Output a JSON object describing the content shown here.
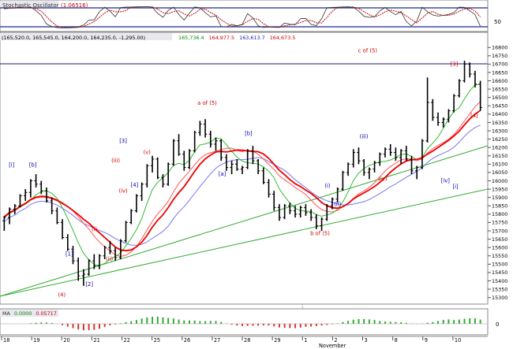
{
  "panels": {
    "stochastic": {
      "title": "Stochastic Oscillator",
      "value": "(1.06516)",
      "scale_label": "50"
    },
    "price": {
      "header_ohlc": "(165,520.0, 165,545.0, 164,200.0, 164,235.0, -1,295.00)",
      "ma1": "165,736.4",
      "ma2": "164,977.5",
      "ma3": "163,613.7",
      "ma4": "164,673.5"
    },
    "macd": {
      "title": "MA",
      "v1": "0.0000",
      "v2": "0.05717",
      "zero_label": "0"
    }
  },
  "month_label": "November",
  "chart_data": {
    "type": "candlestick",
    "y_ticks": [
      15300,
      15350,
      15400,
      15450,
      15500,
      15550,
      15600,
      15650,
      15700,
      15750,
      15800,
      15850,
      15900,
      15950,
      16000,
      16050,
      16100,
      16150,
      16200,
      16250,
      16300,
      16350,
      16400,
      16450,
      16500,
      16550,
      16600,
      16650,
      16700,
      16750,
      16800
    ],
    "ylim": [
      15270,
      16820
    ],
    "x_ticks": [
      "18",
      "19",
      "20",
      "21",
      "22",
      "25",
      "26",
      "27",
      "28",
      "29",
      "1",
      "2",
      "3",
      "8",
      "9",
      "10"
    ],
    "wave_labels": [
      {
        "text": "a of (5)",
        "day": 8.2,
        "price": 16455,
        "color": "#d00000"
      },
      {
        "text": "c of (5)",
        "day": 14.6,
        "price": 16770,
        "color": "#d00000"
      },
      {
        "text": "b of (5)",
        "day": 12.7,
        "price": 15675,
        "color": "#d00000"
      },
      {
        "text": "[i]",
        "day": 0.4,
        "price": 16085,
        "color": "#0000aa"
      },
      {
        "text": "[b]",
        "day": 1.25,
        "price": 16085,
        "color": "#0000aa"
      },
      {
        "text": "[1]",
        "day": 2.7,
        "price": 15550,
        "color": "#0000aa"
      },
      {
        "text": "[2]",
        "day": 3.5,
        "price": 15370,
        "color": "#0000aa"
      },
      {
        "text": "(4)",
        "day": 2.4,
        "price": 15305,
        "color": "#d00000"
      },
      {
        "text": "(i)",
        "day": 3.7,
        "price": 15700,
        "color": "#d00000"
      },
      {
        "text": "(ii)",
        "day": 4.3,
        "price": 15520,
        "color": "#d00000"
      },
      {
        "text": "(iii)",
        "day": 4.55,
        "price": 16110,
        "color": "#d00000"
      },
      {
        "text": "(iv)",
        "day": 4.85,
        "price": 15930,
        "color": "#d00000"
      },
      {
        "text": "[3]",
        "day": 4.85,
        "price": 16230,
        "color": "#0000aa"
      },
      {
        "text": "[4]",
        "day": 5.3,
        "price": 15965,
        "color": "#0000aa"
      },
      {
        "text": "(v)",
        "day": 5.8,
        "price": 16160,
        "color": "#d00000"
      },
      {
        "text": "[a]",
        "day": 8.8,
        "price": 16030,
        "color": "#0000aa"
      },
      {
        "text": "[b]",
        "day": 9.85,
        "price": 16275,
        "color": "#0000aa"
      },
      {
        "text": "(i)",
        "day": 13.0,
        "price": 15960,
        "color": "#0000aa"
      },
      {
        "text": "(ii)",
        "day": 13.4,
        "price": 15850,
        "color": "#0000aa"
      },
      {
        "text": "(iii)",
        "day": 14.45,
        "price": 16255,
        "color": "#0000aa"
      },
      {
        "text": "(iv)",
        "day": 15.2,
        "price": 16000,
        "color": "#d00000"
      },
      {
        "text": "[iv]",
        "day": 17.7,
        "price": 15990,
        "color": "#0000aa"
      },
      {
        "text": "[i]",
        "day": 18.1,
        "price": 15955,
        "color": "#0000aa"
      },
      {
        "text": "[3]",
        "day": 18.05,
        "price": 16690,
        "color": "#d00000"
      },
      {
        "text": "[4]",
        "day": 18.85,
        "price": 16380,
        "color": "#d00000"
      }
    ],
    "bars": [
      [
        15760,
        15790,
        15700,
        15780
      ],
      [
        15780,
        15840,
        15740,
        15830
      ],
      [
        15830,
        15860,
        15800,
        15850
      ],
      [
        15850,
        15920,
        15840,
        15910
      ],
      [
        15910,
        15950,
        15880,
        15930
      ],
      [
        15930,
        16010,
        15900,
        16000
      ],
      [
        16000,
        16040,
        15960,
        15980
      ],
      [
        15980,
        16000,
        15920,
        15940
      ],
      [
        15940,
        15960,
        15870,
        15880
      ],
      [
        15880,
        15900,
        15800,
        15820
      ],
      [
        15820,
        15840,
        15740,
        15750
      ],
      [
        15750,
        15770,
        15650,
        15660
      ],
      [
        15660,
        15680,
        15580,
        15590
      ],
      [
        15590,
        15610,
        15500,
        15520
      ],
      [
        15520,
        15540,
        15400,
        15430
      ],
      [
        15430,
        15470,
        15370,
        15440
      ],
      [
        15440,
        15530,
        15430,
        15520
      ],
      [
        15520,
        15560,
        15470,
        15490
      ],
      [
        15490,
        15560,
        15470,
        15550
      ],
      [
        15550,
        15610,
        15530,
        15600
      ],
      [
        15600,
        15640,
        15560,
        15580
      ],
      [
        15580,
        15600,
        15520,
        15540
      ],
      [
        15540,
        15650,
        15530,
        15640
      ],
      [
        15640,
        15760,
        15630,
        15750
      ],
      [
        15750,
        15830,
        15740,
        15820
      ],
      [
        15820,
        15920,
        15810,
        15910
      ],
      [
        15910,
        15990,
        15880,
        15980
      ],
      [
        15980,
        16100,
        15960,
        16090
      ],
      [
        16090,
        16150,
        16050,
        16130
      ],
      [
        16130,
        16140,
        16010,
        16020
      ],
      [
        16020,
        16040,
        15960,
        15980
      ],
      [
        15980,
        16110,
        15970,
        16100
      ],
      [
        16100,
        16250,
        16090,
        16240
      ],
      [
        16240,
        16280,
        16150,
        16160
      ],
      [
        16160,
        16180,
        16060,
        16080
      ],
      [
        16080,
        16190,
        16070,
        16180
      ],
      [
        16180,
        16300,
        16170,
        16290
      ],
      [
        16290,
        16360,
        16270,
        16340
      ],
      [
        16340,
        16370,
        16260,
        16280
      ],
      [
        16280,
        16300,
        16200,
        16220
      ],
      [
        16220,
        16260,
        16180,
        16240
      ],
      [
        16240,
        16250,
        16120,
        16140
      ],
      [
        16140,
        16160,
        16060,
        16080
      ],
      [
        16080,
        16120,
        16040,
        16100
      ],
      [
        16100,
        16130,
        16060,
        16070
      ],
      [
        16070,
        16090,
        16040,
        16080
      ],
      [
        16080,
        16190,
        16070,
        16180
      ],
      [
        16180,
        16210,
        16100,
        16120
      ],
      [
        16120,
        16130,
        16040,
        16060
      ],
      [
        16060,
        16080,
        15980,
        15990
      ],
      [
        15990,
        16010,
        15900,
        15920
      ],
      [
        15920,
        15940,
        15820,
        15840
      ],
      [
        15840,
        15860,
        15760,
        15780
      ],
      [
        15780,
        15860,
        15770,
        15850
      ],
      [
        15850,
        15870,
        15800,
        15820
      ],
      [
        15820,
        15850,
        15780,
        15800
      ],
      [
        15800,
        15850,
        15780,
        15840
      ],
      [
        15840,
        15860,
        15790,
        15810
      ],
      [
        15810,
        15830,
        15760,
        15780
      ],
      [
        15780,
        15800,
        15710,
        15730
      ],
      [
        15730,
        15780,
        15700,
        15770
      ],
      [
        15770,
        15860,
        15760,
        15850
      ],
      [
        15850,
        15900,
        15830,
        15890
      ],
      [
        15890,
        15960,
        15870,
        15950
      ],
      [
        15950,
        16060,
        15940,
        16050
      ],
      [
        16050,
        16110,
        16030,
        16100
      ],
      [
        16100,
        16190,
        16080,
        16170
      ],
      [
        16170,
        16200,
        16100,
        16120
      ],
      [
        16120,
        16130,
        16030,
        16050
      ],
      [
        16050,
        16080,
        16010,
        16070
      ],
      [
        16070,
        16120,
        16050,
        16110
      ],
      [
        16110,
        16170,
        16090,
        16160
      ],
      [
        16160,
        16200,
        16140,
        16190
      ],
      [
        16190,
        16220,
        16150,
        16170
      ],
      [
        16170,
        16200,
        16120,
        16140
      ],
      [
        16140,
        16190,
        16100,
        16180
      ],
      [
        16180,
        16210,
        16120,
        16130
      ],
      [
        16130,
        16150,
        16040,
        16060
      ],
      [
        16060,
        16090,
        16010,
        16080
      ],
      [
        16080,
        16250,
        16070,
        16240
      ],
      [
        16240,
        16620,
        16230,
        16470
      ],
      [
        16470,
        16490,
        16360,
        16380
      ],
      [
        16380,
        16410,
        16330,
        16350
      ],
      [
        16350,
        16380,
        16320,
        16370
      ],
      [
        16370,
        16430,
        16350,
        16420
      ],
      [
        16420,
        16520,
        16410,
        16510
      ],
      [
        16510,
        16610,
        16500,
        16600
      ],
      [
        16600,
        16720,
        16590,
        16700
      ],
      [
        16700,
        16710,
        16620,
        16640
      ],
      [
        16640,
        16660,
        16560,
        16580
      ],
      [
        16580,
        16600,
        16420,
        16440
      ]
    ]
  }
}
